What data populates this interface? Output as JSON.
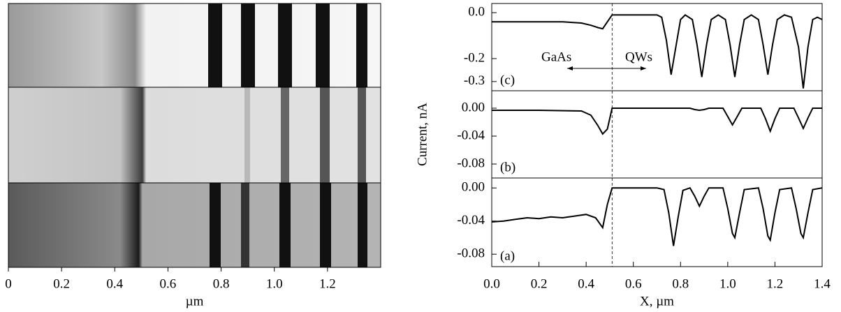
{
  "chart_data": [
    {
      "type": "image",
      "xlabel": "µm",
      "xlim": [
        0,
        1.4
      ],
      "xticks": [
        0,
        0.2,
        0.4,
        0.6,
        0.8,
        {
          "value": 1,
          "label": "1.0"
        },
        1.2
      ]
    },
    {
      "type": "line",
      "panel_label": "(c)",
      "annotations": [
        "GaAs",
        "QWs"
      ],
      "color": "#000000",
      "vline": 0.51,
      "xlim": [
        0,
        1.4
      ],
      "ylim": [
        -0.34,
        0.04
      ],
      "yticks": [
        {
          "value": 0,
          "label": "0.0"
        },
        -0.2,
        -0.3
      ],
      "x": [
        0,
        0.1,
        0.2,
        0.3,
        0.38,
        0.42,
        0.45,
        0.47,
        0.49,
        0.51,
        0.55,
        0.65,
        0.7,
        0.72,
        0.74,
        0.76,
        0.78,
        0.8,
        0.82,
        0.85,
        0.87,
        0.89,
        0.91,
        0.93,
        0.96,
        0.99,
        1.01,
        1.03,
        1.05,
        1.07,
        1.1,
        1.13,
        1.15,
        1.17,
        1.19,
        1.21,
        1.24,
        1.27,
        1.3,
        1.32,
        1.34,
        1.36,
        1.38,
        1.4
      ],
      "values": [
        -0.04,
        -0.04,
        -0.04,
        -0.04,
        -0.045,
        -0.055,
        -0.065,
        -0.07,
        -0.04,
        -0.01,
        -0.01,
        -0.01,
        -0.01,
        -0.02,
        -0.12,
        -0.27,
        -0.15,
        -0.03,
        -0.01,
        -0.03,
        -0.14,
        -0.28,
        -0.14,
        -0.03,
        -0.01,
        -0.03,
        -0.14,
        -0.28,
        -0.14,
        -0.03,
        -0.01,
        -0.03,
        -0.14,
        -0.27,
        -0.14,
        -0.03,
        -0.01,
        -0.02,
        -0.15,
        -0.33,
        -0.15,
        -0.03,
        -0.02,
        -0.03
      ]
    },
    {
      "type": "line",
      "panel_label": "(b)",
      "ylabel": "Current, nA",
      "color": "#000000",
      "vline": 0.51,
      "xlim": [
        0,
        1.4
      ],
      "ylim": [
        -0.1,
        0.025
      ],
      "yticks": [
        {
          "value": 0,
          "label": "0.00"
        },
        -0.04,
        -0.08
      ],
      "x": [
        0,
        0.2,
        0.38,
        0.42,
        0.45,
        0.47,
        0.49,
        0.51,
        0.7,
        0.84,
        0.86,
        0.88,
        0.9,
        0.92,
        0.98,
        1.0,
        1.02,
        1.04,
        1.06,
        1.14,
        1.16,
        1.18,
        1.2,
        1.22,
        1.28,
        1.3,
        1.32,
        1.34,
        1.36,
        1.4
      ],
      "values": [
        -0.003,
        -0.003,
        -0.004,
        -0.01,
        -0.025,
        -0.037,
        -0.03,
        0,
        0,
        0,
        -0.002,
        -0.003,
        -0.002,
        0,
        0,
        -0.012,
        -0.024,
        -0.012,
        0,
        0,
        -0.015,
        -0.033,
        -0.015,
        0,
        0,
        -0.014,
        -0.029,
        -0.014,
        0,
        0
      ]
    },
    {
      "type": "line",
      "panel_label": "(a)",
      "xlabel": "X, µm",
      "color": "#000000",
      "vline": 0.51,
      "xlim": [
        0,
        1.4
      ],
      "ylim": [
        -0.095,
        0.012
      ],
      "yticks": [
        {
          "value": 0,
          "label": "0.00"
        },
        -0.04,
        -0.08
      ],
      "xticks": [
        {
          "value": 0,
          "label": "0.0"
        },
        0.2,
        0.4,
        0.6,
        0.8,
        {
          "value": 1,
          "label": "1.0"
        },
        1.2,
        1.4
      ],
      "x": [
        0,
        0.05,
        0.1,
        0.15,
        0.2,
        0.25,
        0.3,
        0.35,
        0.4,
        0.44,
        0.47,
        0.49,
        0.51,
        0.7,
        0.73,
        0.75,
        0.77,
        0.79,
        0.81,
        0.84,
        0.86,
        0.88,
        0.9,
        0.92,
        0.98,
        1.0,
        1.02,
        1.03,
        1.05,
        1.07,
        1.13,
        1.15,
        1.17,
        1.18,
        1.2,
        1.22,
        1.27,
        1.29,
        1.31,
        1.32,
        1.34,
        1.36,
        1.4
      ],
      "values": [
        -0.041,
        -0.04,
        -0.038,
        -0.036,
        -0.037,
        -0.035,
        -0.036,
        -0.034,
        -0.032,
        -0.036,
        -0.048,
        -0.02,
        0,
        0,
        -0.002,
        -0.03,
        -0.07,
        -0.035,
        -0.003,
        0,
        -0.01,
        -0.022,
        -0.01,
        0,
        0,
        -0.025,
        -0.055,
        -0.06,
        -0.03,
        -0.002,
        0,
        -0.025,
        -0.058,
        -0.063,
        -0.03,
        -0.002,
        0,
        -0.025,
        -0.055,
        -0.06,
        -0.03,
        -0.002,
        0
      ]
    }
  ]
}
